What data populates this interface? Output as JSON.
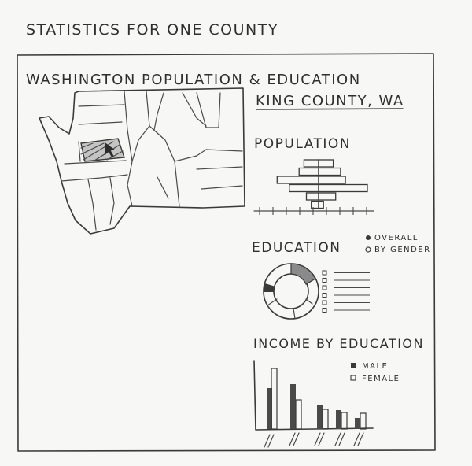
{
  "page_title": "STATISTICS FOR ONE COUNTY",
  "panel_title": "WASHINGTON POPULATION & EDUCATION",
  "county_name": "KING COUNTY, WA",
  "population": {
    "title": "POPULATION",
    "bars_left": [
      0.3,
      0.4,
      0.85,
      0.6,
      0.25,
      0.15
    ],
    "bars_right": [
      0.3,
      0.45,
      0.55,
      1.0,
      0.35,
      0.1
    ]
  },
  "education": {
    "title": "EDUCATION",
    "options": [
      {
        "label": "OVERALL",
        "selected": true
      },
      {
        "label": "BY GENDER",
        "selected": false
      }
    ],
    "legend_count": 6
  },
  "income": {
    "title": "INCOME BY EDUCATION",
    "legend": [
      {
        "label": "MALE",
        "style": "filled"
      },
      {
        "label": "FEMALE",
        "style": "outline"
      }
    ]
  },
  "colors": {
    "ink": "#3a3a3a",
    "highlight": "#9a9a9a",
    "paper": "#f7f7f5"
  }
}
